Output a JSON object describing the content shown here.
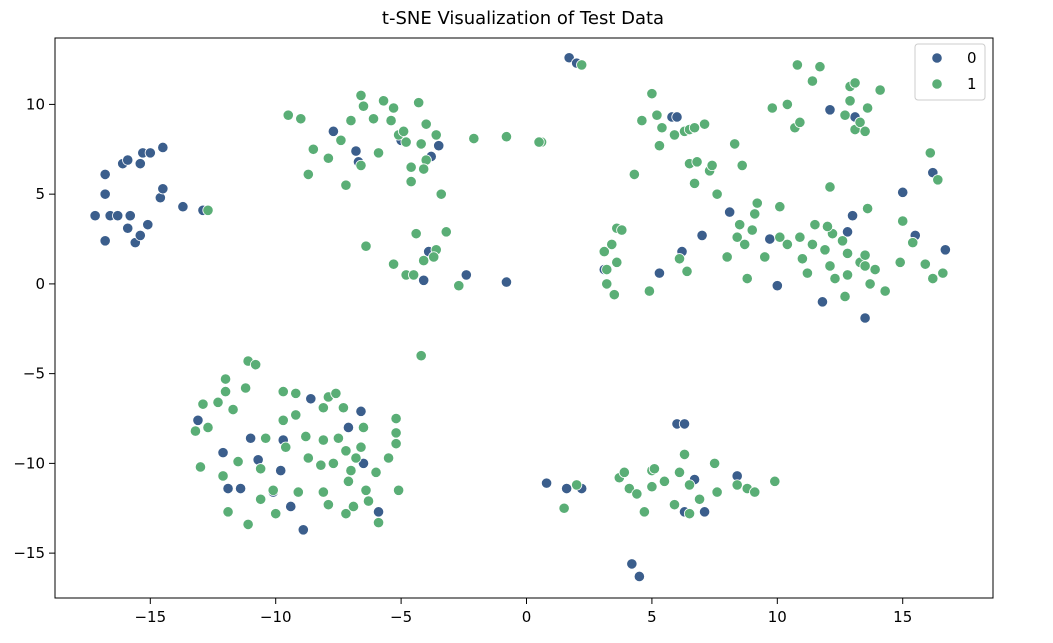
{
  "chart_data": {
    "type": "scatter",
    "title": "t-SNE Visualization of Test Data",
    "xlabel": "",
    "ylabel": "",
    "xlim": [
      -18.8,
      18.6
    ],
    "ylim": [
      -17.5,
      13.7
    ],
    "xticks": [
      -15,
      -10,
      -5,
      0,
      5,
      10,
      15
    ],
    "xtick_labels": [
      "−15",
      "−10",
      "−5",
      "0",
      "5",
      "10",
      "15"
    ],
    "yticks": [
      -15,
      -10,
      -5,
      0,
      5,
      10
    ],
    "ytick_labels": [
      "−15",
      "−10",
      "−5",
      "0",
      "5",
      "10"
    ],
    "grid": false,
    "legend": {
      "placement": "top-right",
      "entries": [
        "0",
        "1"
      ]
    },
    "colors": {
      "0": "#3b5e8c",
      "1": "#5aae76"
    },
    "series": [
      {
        "name": "0",
        "color": "#3b5e8c",
        "points": [
          [
            -17.2,
            3.8
          ],
          [
            -16.8,
            6.1
          ],
          [
            -16.8,
            5.0
          ],
          [
            -16.6,
            3.8
          ],
          [
            -16.3,
            3.8
          ],
          [
            -16.8,
            2.4
          ],
          [
            -16.1,
            6.7
          ],
          [
            -15.9,
            6.9
          ],
          [
            -15.9,
            3.1
          ],
          [
            -15.8,
            3.8
          ],
          [
            -15.6,
            2.3
          ],
          [
            -15.4,
            2.7
          ],
          [
            -15.4,
            6.7
          ],
          [
            -15.3,
            7.3
          ],
          [
            -15.0,
            7.3
          ],
          [
            -15.1,
            3.3
          ],
          [
            -14.6,
            4.8
          ],
          [
            -14.5,
            7.6
          ],
          [
            -14.5,
            5.3
          ],
          [
            -13.7,
            4.3
          ],
          [
            -12.9,
            4.1
          ],
          [
            -3.5,
            7.7
          ],
          [
            -3.8,
            7.1
          ],
          [
            -5.0,
            8.0
          ],
          [
            -6.8,
            7.4
          ],
          [
            -6.7,
            6.8
          ],
          [
            -7.7,
            8.5
          ],
          [
            -3.9,
            1.8
          ],
          [
            -4.1,
            0.2
          ],
          [
            -2.4,
            0.5
          ],
          [
            -0.8,
            0.1
          ],
          [
            1.7,
            12.6
          ],
          [
            2.0,
            12.3
          ],
          [
            3.1,
            0.8
          ],
          [
            5.3,
            0.6
          ],
          [
            5.8,
            9.3
          ],
          [
            6.0,
            9.3
          ],
          [
            6.2,
            1.8
          ],
          [
            7.0,
            2.7
          ],
          [
            8.1,
            4.0
          ],
          [
            9.7,
            2.5
          ],
          [
            10.0,
            -0.1
          ],
          [
            11.8,
            -1.0
          ],
          [
            12.1,
            9.7
          ],
          [
            12.8,
            2.9
          ],
          [
            13.0,
            3.8
          ],
          [
            13.1,
            9.3
          ],
          [
            13.5,
            -1.9
          ],
          [
            15.0,
            5.1
          ],
          [
            15.5,
            2.7
          ],
          [
            16.2,
            6.2
          ],
          [
            16.7,
            1.9
          ],
          [
            -13.1,
            -7.6
          ],
          [
            -12.1,
            -9.4
          ],
          [
            -11.9,
            -11.4
          ],
          [
            -11.4,
            -11.4
          ],
          [
            -11.0,
            -8.6
          ],
          [
            -10.7,
            -9.8
          ],
          [
            -10.1,
            -11.6
          ],
          [
            -9.7,
            -8.7
          ],
          [
            -9.8,
            -10.4
          ],
          [
            -9.4,
            -12.4
          ],
          [
            -8.9,
            -13.7
          ],
          [
            -8.6,
            -6.4
          ],
          [
            -7.1,
            -8.0
          ],
          [
            -6.6,
            -7.1
          ],
          [
            -6.5,
            -10.0
          ],
          [
            -5.9,
            -12.7
          ],
          [
            0.8,
            -11.1
          ],
          [
            1.6,
            -11.4
          ],
          [
            2.2,
            -11.4
          ],
          [
            6.0,
            -7.8
          ],
          [
            6.3,
            -7.8
          ],
          [
            6.3,
            -12.7
          ],
          [
            6.7,
            -10.9
          ],
          [
            7.1,
            -12.7
          ],
          [
            8.4,
            -10.7
          ],
          [
            4.2,
            -15.6
          ],
          [
            4.5,
            -16.3
          ]
        ]
      },
      {
        "name": "1",
        "color": "#5aae76",
        "points": [
          [
            -12.7,
            4.1
          ],
          [
            -9.5,
            9.4
          ],
          [
            -9.0,
            9.2
          ],
          [
            -8.5,
            7.5
          ],
          [
            -8.7,
            6.1
          ],
          [
            -7.9,
            7.0
          ],
          [
            -7.2,
            5.5
          ],
          [
            -7.0,
            9.1
          ],
          [
            -7.4,
            8.0
          ],
          [
            -6.6,
            10.5
          ],
          [
            -6.6,
            6.6
          ],
          [
            -6.5,
            9.9
          ],
          [
            -6.1,
            9.2
          ],
          [
            -5.9,
            7.3
          ],
          [
            -5.7,
            10.2
          ],
          [
            -5.3,
            9.8
          ],
          [
            -5.4,
            9.1
          ],
          [
            -5.1,
            8.3
          ],
          [
            -4.9,
            8.5
          ],
          [
            -4.8,
            7.9
          ],
          [
            -4.6,
            5.7
          ],
          [
            -4.6,
            6.5
          ],
          [
            -4.3,
            10.1
          ],
          [
            -4.2,
            7.8
          ],
          [
            -4.0,
            8.9
          ],
          [
            -4.0,
            6.9
          ],
          [
            -4.1,
            6.4
          ],
          [
            -3.6,
            8.3
          ],
          [
            -3.4,
            5.0
          ],
          [
            -2.1,
            8.1
          ],
          [
            -0.8,
            8.2
          ],
          [
            0.6,
            7.9
          ],
          [
            0.5,
            7.9
          ],
          [
            -6.4,
            2.1
          ],
          [
            -5.3,
            1.1
          ],
          [
            -4.8,
            0.5
          ],
          [
            -4.5,
            0.5
          ],
          [
            -4.4,
            2.8
          ],
          [
            -4.1,
            1.3
          ],
          [
            -3.6,
            1.9
          ],
          [
            -3.7,
            1.5
          ],
          [
            -3.2,
            2.9
          ],
          [
            -2.7,
            -0.1
          ],
          [
            -4.2,
            -4.0
          ],
          [
            2.2,
            12.2
          ],
          [
            3.1,
            1.8
          ],
          [
            3.2,
            0.8
          ],
          [
            3.2,
            0.0
          ],
          [
            3.4,
            2.2
          ],
          [
            3.6,
            3.1
          ],
          [
            3.8,
            3.0
          ],
          [
            3.5,
            -0.6
          ],
          [
            3.6,
            1.2
          ],
          [
            4.3,
            6.1
          ],
          [
            4.6,
            9.1
          ],
          [
            5.0,
            10.6
          ],
          [
            5.2,
            9.4
          ],
          [
            5.4,
            8.7
          ],
          [
            5.3,
            7.7
          ],
          [
            4.9,
            -0.4
          ],
          [
            5.9,
            8.3
          ],
          [
            6.3,
            8.5
          ],
          [
            6.5,
            6.7
          ],
          [
            6.5,
            8.6
          ],
          [
            6.7,
            8.7
          ],
          [
            6.8,
            6.8
          ],
          [
            6.7,
            5.6
          ],
          [
            6.4,
            0.7
          ],
          [
            6.1,
            1.4
          ],
          [
            7.1,
            8.9
          ],
          [
            7.3,
            6.3
          ],
          [
            7.4,
            6.6
          ],
          [
            7.6,
            5.0
          ],
          [
            8.3,
            7.8
          ],
          [
            8.6,
            6.6
          ],
          [
            8.0,
            1.5
          ],
          [
            8.4,
            2.6
          ],
          [
            8.5,
            3.3
          ],
          [
            8.7,
            2.2
          ],
          [
            8.8,
            0.3
          ],
          [
            9.0,
            3.0
          ],
          [
            9.1,
            3.9
          ],
          [
            9.2,
            4.5
          ],
          [
            9.5,
            1.5
          ],
          [
            9.8,
            9.8
          ],
          [
            10.4,
            10.0
          ],
          [
            10.1,
            2.6
          ],
          [
            10.1,
            4.3
          ],
          [
            10.4,
            2.2
          ],
          [
            10.7,
            8.7
          ],
          [
            10.9,
            9.0
          ],
          [
            10.8,
            12.2
          ],
          [
            10.9,
            2.6
          ],
          [
            11.0,
            1.4
          ],
          [
            11.2,
            0.6
          ],
          [
            11.4,
            2.2
          ],
          [
            11.5,
            3.3
          ],
          [
            11.4,
            11.3
          ],
          [
            11.7,
            12.1
          ],
          [
            11.9,
            1.9
          ],
          [
            12.1,
            5.4
          ],
          [
            12.2,
            2.8
          ],
          [
            12.1,
            1.0
          ],
          [
            12.3,
            0.3
          ],
          [
            12.0,
            3.2
          ],
          [
            12.6,
            2.4
          ],
          [
            12.7,
            9.4
          ],
          [
            12.9,
            10.2
          ],
          [
            12.8,
            1.7
          ],
          [
            12.8,
            0.5
          ],
          [
            12.7,
            -0.7
          ],
          [
            12.9,
            11.0
          ],
          [
            13.1,
            11.2
          ],
          [
            13.1,
            8.6
          ],
          [
            13.3,
            9.0
          ],
          [
            13.3,
            1.2
          ],
          [
            13.5,
            1.0
          ],
          [
            13.5,
            8.5
          ],
          [
            13.6,
            9.8
          ],
          [
            13.5,
            1.6
          ],
          [
            13.6,
            4.2
          ],
          [
            13.7,
            0.0
          ],
          [
            13.9,
            0.8
          ],
          [
            14.1,
            10.8
          ],
          [
            14.3,
            -0.4
          ],
          [
            14.9,
            1.2
          ],
          [
            15.0,
            3.5
          ],
          [
            15.4,
            2.3
          ],
          [
            15.9,
            1.1
          ],
          [
            16.1,
            7.3
          ],
          [
            16.2,
            0.3
          ],
          [
            16.4,
            5.8
          ],
          [
            16.6,
            0.6
          ],
          [
            -13.2,
            -8.2
          ],
          [
            -13.0,
            -10.2
          ],
          [
            -12.9,
            -6.7
          ],
          [
            -12.7,
            -8.0
          ],
          [
            -12.3,
            -6.6
          ],
          [
            -12.0,
            -6.0
          ],
          [
            -12.1,
            -10.7
          ],
          [
            -11.9,
            -12.7
          ],
          [
            -12.0,
            -5.3
          ],
          [
            -11.7,
            -7.0
          ],
          [
            -11.5,
            -9.9
          ],
          [
            -11.2,
            -5.8
          ],
          [
            -11.1,
            -13.4
          ],
          [
            -11.1,
            -4.3
          ],
          [
            -10.8,
            -4.5
          ],
          [
            -10.6,
            -10.3
          ],
          [
            -10.6,
            -12.0
          ],
          [
            -10.4,
            -8.6
          ],
          [
            -10.1,
            -11.5
          ],
          [
            -10.0,
            -12.8
          ],
          [
            -9.7,
            -6.0
          ],
          [
            -9.7,
            -7.6
          ],
          [
            -9.6,
            -9.1
          ],
          [
            -9.2,
            -6.1
          ],
          [
            -9.1,
            -11.6
          ],
          [
            -9.2,
            -7.3
          ],
          [
            -8.8,
            -8.5
          ],
          [
            -8.7,
            -9.7
          ],
          [
            -8.2,
            -10.1
          ],
          [
            -8.1,
            -8.7
          ],
          [
            -8.1,
            -6.9
          ],
          [
            -8.1,
            -11.6
          ],
          [
            -7.9,
            -6.3
          ],
          [
            -7.9,
            -12.3
          ],
          [
            -7.7,
            -10.0
          ],
          [
            -7.6,
            -6.1
          ],
          [
            -7.5,
            -8.6
          ],
          [
            -7.3,
            -6.9
          ],
          [
            -7.2,
            -9.3
          ],
          [
            -7.2,
            -12.8
          ],
          [
            -7.1,
            -11.0
          ],
          [
            -7.0,
            -10.4
          ],
          [
            -6.9,
            -12.4
          ],
          [
            -6.8,
            -9.7
          ],
          [
            -6.6,
            -9.1
          ],
          [
            -6.5,
            -8.0
          ],
          [
            -6.4,
            -11.5
          ],
          [
            -6.3,
            -12.1
          ],
          [
            -6.0,
            -10.5
          ],
          [
            -5.9,
            -13.3
          ],
          [
            -5.5,
            -9.7
          ],
          [
            -5.2,
            -7.5
          ],
          [
            -5.2,
            -8.3
          ],
          [
            -5.2,
            -8.9
          ],
          [
            -5.1,
            -11.5
          ],
          [
            1.5,
            -12.5
          ],
          [
            2.0,
            -11.2
          ],
          [
            3.7,
            -10.8
          ],
          [
            3.9,
            -10.5
          ],
          [
            4.1,
            -11.4
          ],
          [
            4.4,
            -11.7
          ],
          [
            4.7,
            -12.7
          ],
          [
            5.0,
            -10.4
          ],
          [
            5.1,
            -10.3
          ],
          [
            5.0,
            -11.3
          ],
          [
            5.5,
            -11.0
          ],
          [
            5.9,
            -12.3
          ],
          [
            6.1,
            -10.5
          ],
          [
            6.3,
            -9.5
          ],
          [
            6.5,
            -11.2
          ],
          [
            6.5,
            -12.8
          ],
          [
            6.9,
            -12.0
          ],
          [
            7.5,
            -10.0
          ],
          [
            7.6,
            -11.6
          ],
          [
            8.4,
            -11.2
          ],
          [
            8.8,
            -11.4
          ],
          [
            9.1,
            -11.6
          ],
          [
            9.9,
            -11.0
          ]
        ]
      }
    ]
  }
}
